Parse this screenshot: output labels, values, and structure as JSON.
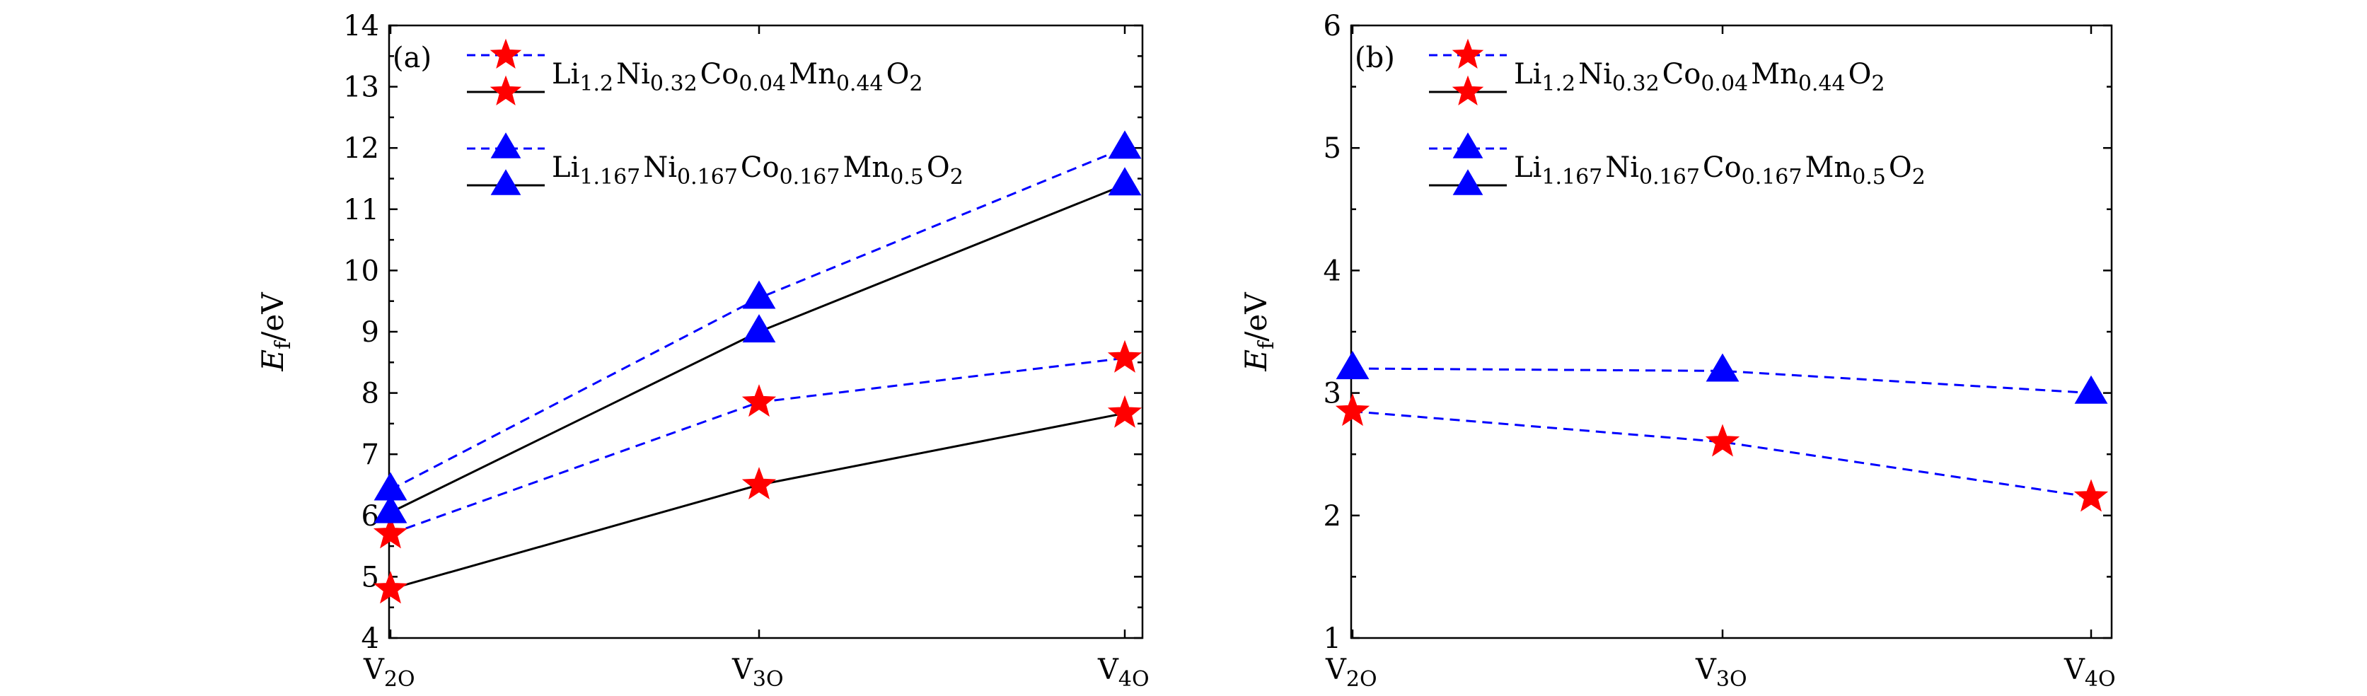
{
  "chart_data": [
    {
      "type": "line",
      "panel_label": "(a)",
      "ylabel": "Ef/eV",
      "ylabel_main": "E",
      "ylabel_sub": "f",
      "ylabel_rest": "/eV",
      "ylim": [
        4,
        14
      ],
      "yticks": [
        "4",
        "5",
        "6",
        "7",
        "8",
        "9",
        "10",
        "11",
        "12",
        "13",
        "14"
      ],
      "categories": [
        {
          "main": "V",
          "sub": "2O"
        },
        {
          "main": "V",
          "sub": "3O"
        },
        {
          "main": "V",
          "sub": "4O"
        }
      ],
      "legend_position": "top-left",
      "series": [
        {
          "marker": "star",
          "line": "dashed",
          "color": "#ff0000",
          "line_color": "#0000ff",
          "values": [
            5.7,
            7.85,
            8.57
          ]
        },
        {
          "marker": "star",
          "line": "solid",
          "color": "#ff0000",
          "line_color": "#000000",
          "values": [
            4.8,
            6.5,
            7.67
          ]
        },
        {
          "marker": "triangle",
          "line": "dashed",
          "color": "#0000ff",
          "line_color": "#0000ff",
          "values": [
            6.42,
            9.55,
            12.0
          ]
        },
        {
          "marker": "triangle",
          "line": "solid",
          "color": "#0000ff",
          "line_color": "#000000",
          "values": [
            6.05,
            9.0,
            11.4
          ]
        }
      ],
      "legend": [
        {
          "formula": [
            {
              "t": "Li",
              "s": "1.2"
            },
            {
              "t": "Ni",
              "s": "0.32"
            },
            {
              "t": "Co",
              "s": "0.04"
            },
            {
              "t": "Mn",
              "s": "0.44"
            },
            {
              "t": "O",
              "s": "2"
            }
          ],
          "marker": "star",
          "color": "#ff0000"
        },
        {
          "formula": [
            {
              "t": "Li",
              "s": "1.167"
            },
            {
              "t": "Ni",
              "s": "0.167"
            },
            {
              "t": "Co",
              "s": "0.167"
            },
            {
              "t": "Mn",
              "s": "0.5"
            },
            {
              "t": "O",
              "s": "2"
            }
          ],
          "marker": "triangle",
          "color": "#0000ff"
        }
      ]
    },
    {
      "type": "line",
      "panel_label": "(b)",
      "ylabel": "Ef/eV",
      "ylabel_main": "E",
      "ylabel_sub": "f",
      "ylabel_rest": "/eV",
      "ylim": [
        1,
        6
      ],
      "yticks": [
        "1",
        "2",
        "3",
        "4",
        "5",
        "6"
      ],
      "categories": [
        {
          "main": "V",
          "sub": "2O"
        },
        {
          "main": "V",
          "sub": "3O"
        },
        {
          "main": "V",
          "sub": "4O"
        }
      ],
      "legend_position": "top-left",
      "series": [
        {
          "marker": "star",
          "line": "dashed",
          "color": "#ff0000",
          "line_color": "#0000ff",
          "values": [
            2.85,
            2.6,
            2.15
          ]
        },
        {
          "marker": "triangle",
          "line": "dashed",
          "color": "#0000ff",
          "line_color": "#0000ff",
          "values": [
            3.2,
            3.18,
            3.0
          ]
        }
      ],
      "legend": [
        {
          "formula": [
            {
              "t": "Li",
              "s": "1.2"
            },
            {
              "t": "Ni",
              "s": "0.32"
            },
            {
              "t": "Co",
              "s": "0.04"
            },
            {
              "t": "Mn",
              "s": "0.44"
            },
            {
              "t": "O",
              "s": "2"
            }
          ],
          "marker": "star",
          "color": "#ff0000"
        },
        {
          "formula": [
            {
              "t": "Li",
              "s": "1.167"
            },
            {
              "t": "Ni",
              "s": "0.167"
            },
            {
              "t": "Co",
              "s": "0.167"
            },
            {
              "t": "Mn",
              "s": "0.5"
            },
            {
              "t": "O",
              "s": "2"
            }
          ],
          "marker": "triangle",
          "color": "#0000ff"
        }
      ]
    }
  ]
}
